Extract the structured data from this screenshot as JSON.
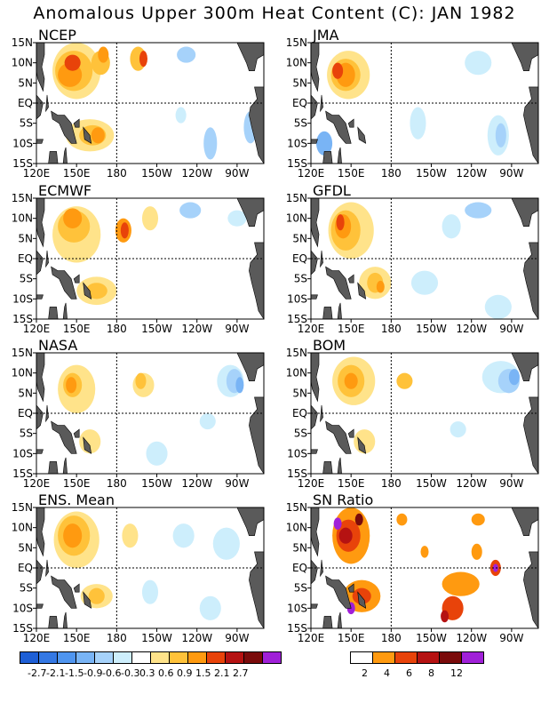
{
  "title": "Anomalous Upper 300m Heat Content (C): JAN 1982",
  "panels": [
    {
      "id": "ncep",
      "title": "NCEP"
    },
    {
      "id": "jma",
      "title": "JMA"
    },
    {
      "id": "ecmwf",
      "title": "ECMWF"
    },
    {
      "id": "gfdl",
      "title": "GFDL"
    },
    {
      "id": "nasa",
      "title": "NASA"
    },
    {
      "id": "bom",
      "title": "BOM"
    },
    {
      "id": "ens",
      "title": "ENS. Mean"
    },
    {
      "id": "sn",
      "title": "SN Ratio"
    }
  ],
  "lat_labels": [
    "15N",
    "10N",
    "5N",
    "EQ",
    "5S",
    "10S",
    "15S"
  ],
  "lon_labels": [
    "120E",
    "150E",
    "180",
    "150W",
    "120W",
    "90W"
  ],
  "colorbar_anomaly": {
    "labels": [
      "-2.7",
      "-2.1",
      "-1.5",
      "-0.9",
      "-0.6",
      "-0.3",
      "0.3",
      "0.6",
      "0.9",
      "1.5",
      "2.1",
      "2.7"
    ],
    "colors": [
      "#1e5fd6",
      "#3478e4",
      "#4f95ef",
      "#79b4f5",
      "#a6d2fa",
      "#cdeefc",
      "#ffffff",
      "#ffe38a",
      "#ffc23a",
      "#ff9a10",
      "#e8430a",
      "#b51212",
      "#7a0b0b",
      "#a020d8"
    ]
  },
  "colorbar_sn": {
    "labels": [
      "2",
      "4",
      "6",
      "8",
      "12"
    ],
    "colors": [
      "#ffffff",
      "#ff9a10",
      "#e8430a",
      "#b51212",
      "#7a0b0b",
      "#a020d8"
    ]
  },
  "colors": {
    "land": "#5a5a5a",
    "background": "#ffffff"
  }
}
